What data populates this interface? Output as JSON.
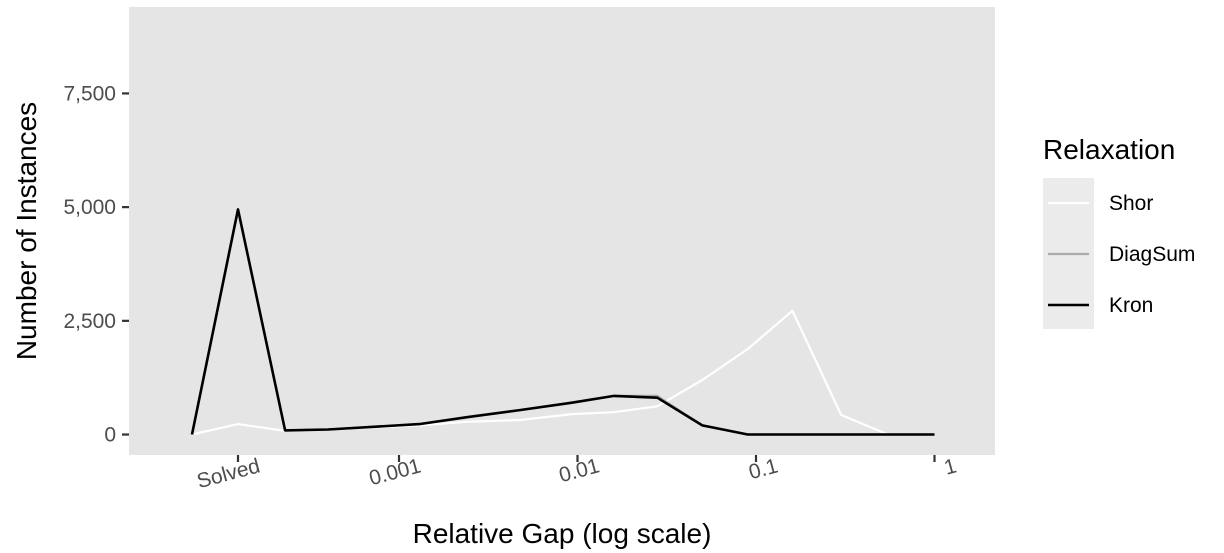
{
  "chart_data": {
    "type": "line",
    "xlabel": "Relative Gap (log scale)",
    "ylabel": "Number of Instances",
    "x_scale": "log",
    "x_ticks": [
      {
        "value": "Solved",
        "label": "Solved"
      },
      {
        "value": 0.001,
        "label": "0.001"
      },
      {
        "value": 0.01,
        "label": "0.01"
      },
      {
        "value": 0.1,
        "label": "0.1"
      },
      {
        "value": 1,
        "label": "1"
      }
    ],
    "y_ticks": [
      0,
      2500,
      5000,
      7500
    ],
    "y_tick_labels": [
      "0",
      "2,500",
      "5,000",
      "7,500"
    ],
    "ylim": [
      -450,
      9400
    ],
    "grid": false,
    "legend": {
      "title": "Relaxation",
      "placement": "right",
      "entries": [
        {
          "name": "Shor",
          "color": "#ffffff"
        },
        {
          "name": "DiagSum",
          "color": "#aaaaaa"
        },
        {
          "name": "Kron",
          "color": "#000000"
        }
      ]
    },
    "series": [
      {
        "name": "Shor",
        "color": "#ffffff",
        "points": [
          {
            "x": "0",
            "y": 0
          },
          {
            "x": "Solved",
            "y": 230
          },
          {
            "x": 0.00023,
            "y": 80
          },
          {
            "x": 0.0004,
            "y": 110
          },
          {
            "x": 0.0013,
            "y": 200
          },
          {
            "x": 0.0024,
            "y": 280
          },
          {
            "x": 0.0048,
            "y": 320
          },
          {
            "x": 0.0093,
            "y": 450
          },
          {
            "x": 0.016,
            "y": 490
          },
          {
            "x": 0.028,
            "y": 620
          },
          {
            "x": 0.05,
            "y": 1200
          },
          {
            "x": 0.09,
            "y": 1880
          },
          {
            "x": 0.16,
            "y": 2720
          },
          {
            "x": 0.3,
            "y": 430
          },
          {
            "x": 0.55,
            "y": 0
          },
          {
            "x": 1,
            "y": 0
          }
        ]
      },
      {
        "name": "DiagSum",
        "color": "#aaaaaa",
        "points": [
          {
            "x": "0",
            "y": 0
          },
          {
            "x": "Solved",
            "y": 4950
          },
          {
            "x": 0.00023,
            "y": 90
          },
          {
            "x": 0.0004,
            "y": 110
          },
          {
            "x": 0.0013,
            "y": 230
          },
          {
            "x": 0.0024,
            "y": 380
          },
          {
            "x": 0.0048,
            "y": 540
          },
          {
            "x": 0.0093,
            "y": 700
          },
          {
            "x": 0.016,
            "y": 850
          },
          {
            "x": 0.028,
            "y": 850
          },
          {
            "x": 0.05,
            "y": 200
          },
          {
            "x": 0.09,
            "y": 0
          },
          {
            "x": 0.16,
            "y": 0
          },
          {
            "x": 0.3,
            "y": 0
          },
          {
            "x": 0.55,
            "y": 0
          },
          {
            "x": 1,
            "y": 0
          }
        ]
      },
      {
        "name": "Kron",
        "color": "#000000",
        "points": [
          {
            "x": "0",
            "y": 0
          },
          {
            "x": "Solved",
            "y": 4950
          },
          {
            "x": 0.00023,
            "y": 90
          },
          {
            "x": 0.0004,
            "y": 110
          },
          {
            "x": 0.0013,
            "y": 230
          },
          {
            "x": 0.0024,
            "y": 380
          },
          {
            "x": 0.0048,
            "y": 540
          },
          {
            "x": 0.0093,
            "y": 700
          },
          {
            "x": 0.016,
            "y": 850
          },
          {
            "x": 0.028,
            "y": 810
          },
          {
            "x": 0.05,
            "y": 200
          },
          {
            "x": 0.09,
            "y": 0
          },
          {
            "x": 0.16,
            "y": 0
          },
          {
            "x": 0.3,
            "y": 0
          },
          {
            "x": 0.55,
            "y": 0
          },
          {
            "x": 1,
            "y": 0
          }
        ]
      }
    ]
  }
}
